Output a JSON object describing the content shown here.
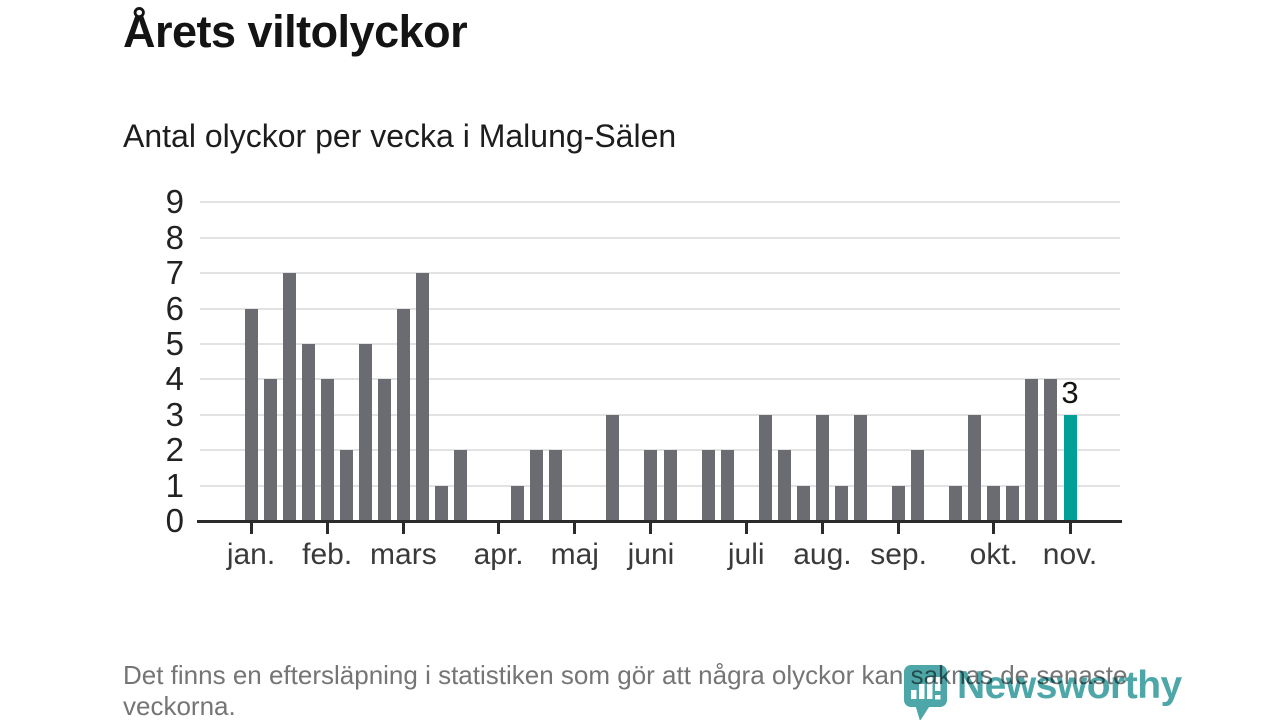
{
  "header": {
    "title": "Årets viltolyckor",
    "subtitle": "Antal olyckor per vecka i Malung-Sälen"
  },
  "chart_data": {
    "type": "bar",
    "xlabel": "",
    "ylabel": "",
    "x_unit": "vecka",
    "x": [
      1,
      2,
      3,
      4,
      5,
      6,
      7,
      8,
      9,
      10,
      11,
      12,
      13,
      14,
      15,
      16,
      17,
      18,
      19,
      20,
      21,
      22,
      23,
      24,
      25,
      26,
      27,
      28,
      29,
      30,
      31,
      32,
      33,
      34,
      35,
      36,
      37,
      38,
      39,
      40,
      41,
      42,
      43,
      44
    ],
    "values": [
      6,
      4,
      7,
      5,
      4,
      2,
      5,
      4,
      6,
      7,
      1,
      2,
      0,
      0,
      1,
      2,
      2,
      0,
      0,
      3,
      0,
      2,
      2,
      0,
      2,
      2,
      0,
      3,
      2,
      1,
      3,
      1,
      3,
      0,
      1,
      2,
      0,
      1,
      3,
      1,
      1,
      4,
      4,
      3
    ],
    "highlight_index": 43,
    "highlight_label": "3",
    "ylim": [
      0,
      9
    ],
    "yticks": [
      0,
      1,
      2,
      3,
      4,
      5,
      6,
      7,
      8,
      9
    ],
    "grid": true,
    "legend": "none",
    "month_ticks": [
      {
        "week": 1,
        "label": "jan."
      },
      {
        "week": 5,
        "label": "feb."
      },
      {
        "week": 9,
        "label": "mars"
      },
      {
        "week": 14,
        "label": "apr."
      },
      {
        "week": 18,
        "label": "maj"
      },
      {
        "week": 22,
        "label": "juni"
      },
      {
        "week": 27,
        "label": "juli"
      },
      {
        "week": 31,
        "label": "aug."
      },
      {
        "week": 35,
        "label": "sep."
      },
      {
        "week": 40,
        "label": "okt."
      },
      {
        "week": 44,
        "label": "nov."
      }
    ],
    "colors": {
      "bar": "#6b6b72",
      "highlight": "#00a098",
      "grid": "#e2e2e2",
      "axis": "#2b2b2b"
    }
  },
  "footer": {
    "note": "Det finns en eftersläpning i statistiken som gör att några olyckor kan saknas de senaste veckorna."
  },
  "logo": {
    "text": "Newsworthy",
    "color": "#3e9fa0",
    "icon": "newsworthy-pin-barchart-icon"
  }
}
